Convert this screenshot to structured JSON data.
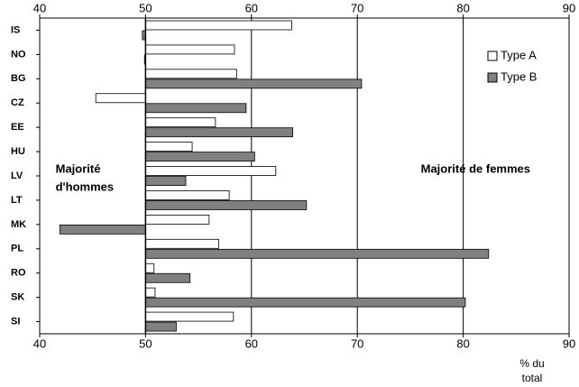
{
  "chart_data": {
    "type": "hbar",
    "categories": [
      "IS",
      "NO",
      "BG",
      "CZ",
      "EE",
      "HU",
      "LV",
      "LT",
      "MK",
      "PL",
      "RO",
      "SK",
      "SI"
    ],
    "series": [
      {
        "name": "Type A",
        "color": "#ffffff",
        "values": [
          63.8,
          58.4,
          58.6,
          45.3,
          56.6,
          54.4,
          62.3,
          57.9,
          56.0,
          56.9,
          50.8,
          50.9,
          58.3
        ]
      },
      {
        "name": "Type B",
        "color": "#808080",
        "values": [
          49.7,
          49.9,
          70.4,
          59.5,
          63.9,
          60.3,
          53.8,
          65.2,
          41.9,
          82.4,
          54.2,
          80.2,
          52.9
        ]
      }
    ],
    "bar_base": 50,
    "xlim": [
      40,
      90
    ],
    "xticks": [
      40,
      50,
      60,
      70,
      80,
      90
    ],
    "grid": true,
    "legend": "top-right",
    "x_label": [
      "% du",
      "total"
    ],
    "annotations": [
      {
        "text": [
          "Majorité",
          "d'hommes"
        ],
        "x": 41.5
      },
      {
        "text": [
          "Majorité de femmes"
        ],
        "x": 76
      }
    ]
  }
}
